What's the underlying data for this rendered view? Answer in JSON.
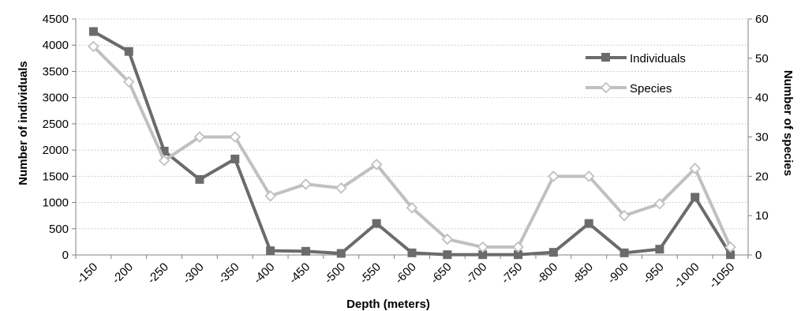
{
  "chart_data": {
    "type": "line",
    "title": "",
    "xlabel": "Depth (meters)",
    "ylabel": "Number of individuals",
    "y2label": "Number of species",
    "categories": [
      "-150",
      "-200",
      "-250",
      "-300",
      "-350",
      "-400",
      "-450",
      "-500",
      "-550",
      "-600",
      "-650",
      "-700",
      "-750",
      "-800",
      "-850",
      "-900",
      "-950",
      "-1000",
      "-1050"
    ],
    "ylim": [
      0,
      4500
    ],
    "y2lim": [
      0,
      60
    ],
    "yticks": [
      "0",
      "500",
      "1000",
      "1500",
      "2000",
      "2500",
      "3000",
      "3500",
      "4000",
      "4500"
    ],
    "y2ticks": [
      "0",
      "10",
      "20",
      "30",
      "40",
      "50",
      "60"
    ],
    "grid": true,
    "legend_position": "top-right",
    "series": [
      {
        "name": "Individuals",
        "axis": "left",
        "color": "#6b6b6b",
        "marker": "filled-square",
        "values": [
          4260,
          3880,
          1980,
          1440,
          1830,
          80,
          70,
          30,
          600,
          40,
          5,
          5,
          5,
          50,
          600,
          40,
          110,
          1100,
          5
        ]
      },
      {
        "name": "Species",
        "axis": "right",
        "color": "#c0c0c0",
        "marker": "open-diamond",
        "values": [
          53,
          44,
          24,
          30,
          30,
          15,
          18,
          17,
          23,
          12,
          4,
          2,
          2,
          20,
          20,
          10,
          13,
          22,
          2
        ]
      }
    ]
  }
}
